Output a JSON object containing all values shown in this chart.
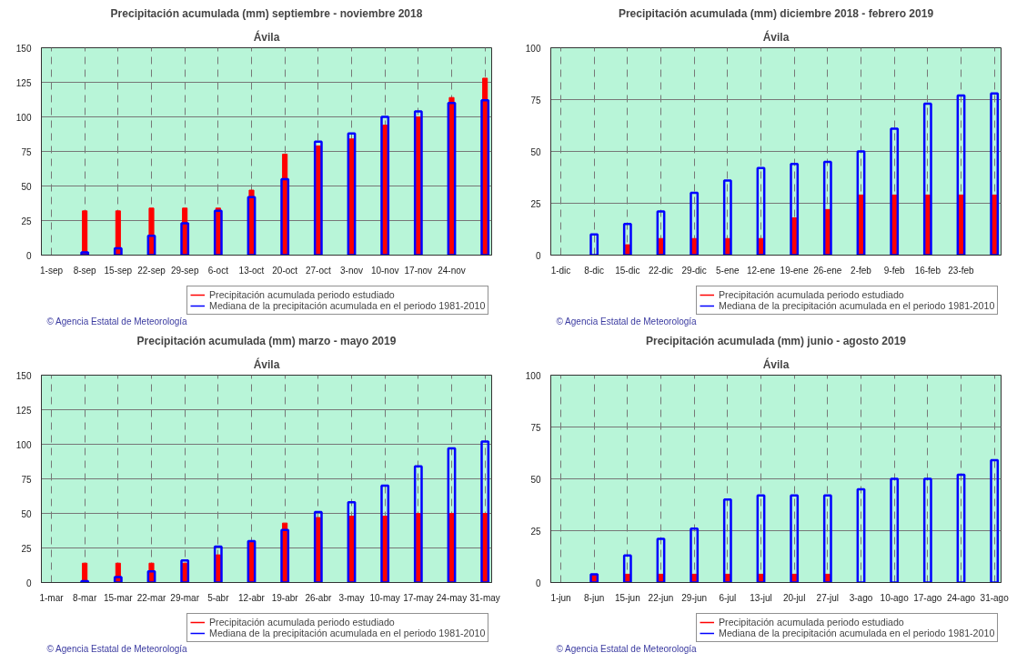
{
  "chart_data": [
    {
      "type": "bar",
      "title": "Precipitación acumulada (mm) septiembre - noviembre 2018",
      "subtitle": "Ávila",
      "categories": [
        "1-sep",
        "8-sep",
        "15-sep",
        "22-sep",
        "29-sep",
        "6-oct",
        "13-oct",
        "20-oct",
        "27-oct",
        "3-nov",
        "10-nov",
        "17-nov",
        "24-nov",
        null
      ],
      "series": [
        {
          "name": "Precipitación acumulada periodo estudiado",
          "color": "#ff0000",
          "values": [
            null,
            32,
            32,
            34,
            34,
            34,
            47,
            73,
            79,
            84,
            94,
            100,
            114,
            128
          ]
        },
        {
          "name": "Mediana de la precipitación acumulada en el periodo 1981-2010",
          "color": "#0000ff",
          "values": [
            null,
            2,
            5,
            14,
            23,
            32,
            42,
            55,
            82,
            88,
            100,
            104,
            110,
            112
          ]
        }
      ],
      "ylim": [
        0,
        150
      ],
      "yticks": [
        0,
        25,
        50,
        75,
        100,
        125,
        150
      ],
      "grid": true,
      "legend": "bottom",
      "annotations": [
        "© Agencia Estatal de Meteorología"
      ]
    },
    {
      "type": "bar",
      "title": "Precipitación acumulada (mm) diciembre 2018 - febrero 2019",
      "subtitle": "Ávila",
      "categories": [
        "1-dic",
        "8-dic",
        "15-dic",
        "22-dic",
        "29-dic",
        "5-ene",
        "12-ene",
        "19-ene",
        "26-ene",
        "2-feb",
        "9-feb",
        "16-feb",
        "23-feb",
        null
      ],
      "series": [
        {
          "name": "Precipitación acumulada periodo estudiado",
          "color": "#ff0000",
          "values": [
            null,
            0,
            5,
            8,
            8,
            8,
            8,
            18,
            22,
            29,
            29,
            29,
            29,
            29
          ]
        },
        {
          "name": "Mediana de la precipitación acumulada en el periodo 1981-2010",
          "color": "#0000ff",
          "values": [
            null,
            10,
            15,
            21,
            30,
            36,
            42,
            44,
            45,
            50,
            61,
            73,
            77,
            78
          ]
        }
      ],
      "ylim": [
        0,
        100
      ],
      "yticks": [
        0,
        25,
        50,
        75,
        100
      ],
      "grid": true,
      "legend": "bottom",
      "annotations": [
        "© Agencia Estatal de Meteorología"
      ]
    },
    {
      "type": "bar",
      "title": "Precipitación acumulada (mm) marzo - mayo 2019",
      "subtitle": "Ávila",
      "categories": [
        "1-mar",
        "8-mar",
        "15-mar",
        "22-mar",
        "29-mar",
        "5-abr",
        "12-abr",
        "19-abr",
        "26-abr",
        "3-may",
        "10-may",
        "17-may",
        "24-may",
        "31-may"
      ],
      "series": [
        {
          "name": "Precipitación acumulada periodo estudiado",
          "color": "#ff0000",
          "values": [
            null,
            14,
            14,
            14,
            14,
            20,
            29,
            43,
            47,
            48,
            48,
            50,
            50,
            50
          ]
        },
        {
          "name": "Mediana de la precipitación acumulada en el periodo 1981-2010",
          "color": "#0000ff",
          "values": [
            null,
            1,
            4,
            8,
            16,
            26,
            30,
            38,
            51,
            58,
            70,
            84,
            97,
            102
          ]
        }
      ],
      "ylim": [
        0,
        150
      ],
      "yticks": [
        0,
        25,
        50,
        75,
        100,
        125,
        150
      ],
      "grid": true,
      "legend": "bottom",
      "annotations": [
        "© Agencia Estatal de Meteorología"
      ]
    },
    {
      "type": "bar",
      "title": "Precipitación acumulada (mm) junio - agosto 2019",
      "subtitle": "Ávila",
      "categories": [
        "1-jun",
        "8-jun",
        "15-jun",
        "22-jun",
        "29-jun",
        "6-jul",
        "13-jul",
        "20-jul",
        "27-jul",
        "3-ago",
        "10-ago",
        "17-ago",
        "24-ago",
        "31-ago"
      ],
      "series": [
        {
          "name": "Precipitación acumulada periodo estudiado",
          "color": "#ff0000",
          "values": [
            null,
            4,
            4,
            4,
            4,
            4,
            4,
            4,
            4,
            null,
            null,
            null,
            null,
            null
          ]
        },
        {
          "name": "Mediana de la precipitación acumulada en el periodo 1981-2010",
          "color": "#0000ff",
          "values": [
            null,
            4,
            13,
            21,
            26,
            40,
            42,
            42,
            42,
            45,
            50,
            50,
            52,
            59
          ]
        }
      ],
      "ylim": [
        0,
        100
      ],
      "yticks": [
        0,
        25,
        50,
        75,
        100
      ],
      "grid": true,
      "legend": "bottom",
      "annotations": [
        "© Agencia Estatal de Meteorología"
      ]
    }
  ]
}
